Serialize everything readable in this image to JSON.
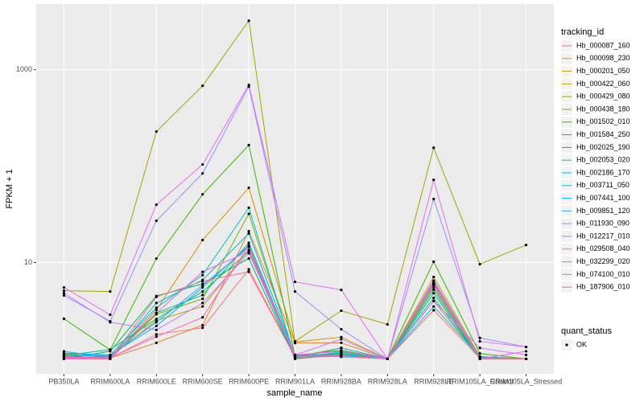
{
  "chart_data": {
    "type": "line",
    "log_y": true,
    "grid": true,
    "legend_position": "right",
    "point_color": "#000000",
    "panel_color": "#EBEBEB",
    "x_label": "sample_name",
    "y_label": "FPKM + 1",
    "categories": [
      "PB350LA",
      "RRIM600LA",
      "RRIM600LE",
      "RRIM600SE",
      "RRIM600PE",
      "RRIM901LA",
      "RRIM928BA",
      "RRIM928LA",
      "RRIM928LE",
      "RRIM105LA_Control",
      "RRIM105LA_Stressed"
    ],
    "ylim": [
      0.7,
      4800
    ],
    "yticks": [
      10,
      1000
    ],
    "legend_title": "tracking_id",
    "legend2": {
      "title": "quant_status",
      "labels": [
        "OK"
      ]
    },
    "series": [
      {
        "name": "Hb_000087_160",
        "color": "#F8766D",
        "values": [
          1.05,
          1.02,
          1.8,
          2.1,
          8.5,
          1.05,
          1.08,
          1.0,
          3.2,
          1.02,
          1.0
        ]
      },
      {
        "name": "Hb_000098_230",
        "color": "#EA8331",
        "values": [
          1.07,
          1.02,
          1.47,
          2.24,
          21.1,
          1.46,
          1.47,
          1.0,
          3.98,
          1.02,
          1.0
        ]
      },
      {
        "name": "Hb_000201_050",
        "color": "#D89000",
        "values": [
          1.14,
          1.02,
          3.22,
          17.1,
          59.6,
          1.5,
          1.68,
          1.0,
          7.08,
          1.06,
          1.0
        ]
      },
      {
        "name": "Hb_000422_060",
        "color": "#C09B00",
        "values": [
          1.1,
          1.05,
          2.5,
          3.5,
          13.5,
          1.1,
          1.2,
          1.0,
          6.0,
          1.03,
          1.0
        ]
      },
      {
        "name": "Hb_000429_080",
        "color": "#A3A500",
        "values": [
          5.1,
          5.0,
          228,
          681,
          3225,
          1.52,
          3.16,
          2.28,
          155,
          9.6,
          15.2
        ]
      },
      {
        "name": "Hb_000438_180",
        "color": "#7CAE00",
        "values": [
          1.03,
          1.0,
          2.9,
          4.2,
          32,
          1.05,
          1.3,
          1.0,
          5.5,
          1.02,
          1.0
        ]
      },
      {
        "name": "Hb_001502_010",
        "color": "#39B600",
        "values": [
          2.61,
          1.24,
          11.0,
          51,
          165,
          1.07,
          1.23,
          1.0,
          10.2,
          1.14,
          1.0
        ]
      },
      {
        "name": "Hb_001584_250",
        "color": "#00BB4E",
        "values": [
          1.0,
          1.2,
          4.5,
          6.0,
          11,
          1.0,
          1.1,
          1.0,
          4.8,
          1.0,
          1.0
        ]
      },
      {
        "name": "Hb_002025_190",
        "color": "#00BF7D",
        "values": [
          1.08,
          1.25,
          2.6,
          5.0,
          13,
          1.02,
          1.15,
          1.0,
          5.2,
          1.0,
          1.0
        ]
      },
      {
        "name": "Hb_002053_020",
        "color": "#00C1A3",
        "values": [
          1.12,
          1.05,
          3.0,
          4.6,
          16,
          1.08,
          1.12,
          1.0,
          6.2,
          1.04,
          1.0
        ]
      },
      {
        "name": "Hb_002186_170",
        "color": "#00BFC4",
        "values": [
          1.06,
          1.1,
          3.4,
          7.4,
          37,
          1.03,
          1.18,
          1.0,
          4.3,
          1.01,
          1.0
        ]
      },
      {
        "name": "Hb_003711_050",
        "color": "#00BAE0",
        "values": [
          1.2,
          1.02,
          3.8,
          6.6,
          20,
          1.1,
          1.05,
          1.0,
          3.5,
          1.05,
          1.0
        ]
      },
      {
        "name": "Hb_007441_100",
        "color": "#00B0F6",
        "values": [
          1.15,
          1.1,
          2.2,
          5.5,
          15,
          1.06,
          1.1,
          1.0,
          5.8,
          1.02,
          1.0
        ]
      },
      {
        "name": "Hb_009851_120",
        "color": "#35A2FF",
        "values": [
          1.1,
          1.08,
          2.4,
          5.8,
          14.5,
          1.0,
          1.3,
          1.0,
          6.5,
          1.03,
          1.0
        ]
      },
      {
        "name": "Hb_011930_090",
        "color": "#9590FF",
        "values": [
          4.55,
          2.46,
          27.1,
          84,
          668,
          5.0,
          2.03,
          1.0,
          45.5,
          1.65,
          1.33
        ]
      },
      {
        "name": "Hb_012217_010",
        "color": "#C77CFF",
        "values": [
          4.8,
          2.4,
          2.0,
          3.8,
          12.5,
          1.1,
          1.6,
          1.0,
          4.0,
          1.3,
          1.1
        ]
      },
      {
        "name": "Hb_029508_040",
        "color": "#E76BF3",
        "values": [
          5.5,
          2.87,
          39.8,
          104,
          695,
          6.3,
          5.2,
          1.0,
          72,
          1.52,
          1.33
        ]
      },
      {
        "name": "Hb_032299_020",
        "color": "#FA62DB",
        "values": [
          1.0,
          1.0,
          3.0,
          8.0,
          13,
          1.1,
          1.2,
          1.0,
          5.9,
          1.0,
          1.2
        ]
      },
      {
        "name": "Hb_074100_010",
        "color": "#FF62BC",
        "values": [
          1.04,
          1.03,
          1.7,
          2.7,
          15,
          1.06,
          1.08,
          1.0,
          6.1,
          1.02,
          1.0
        ]
      },
      {
        "name": "Hb_187906_010",
        "color": "#FF6C91",
        "values": [
          1.02,
          1.0,
          4.4,
          6.4,
          8.0,
          1.04,
          1.06,
          1.0,
          6.3,
          1.0,
          1.0
        ]
      }
    ]
  }
}
